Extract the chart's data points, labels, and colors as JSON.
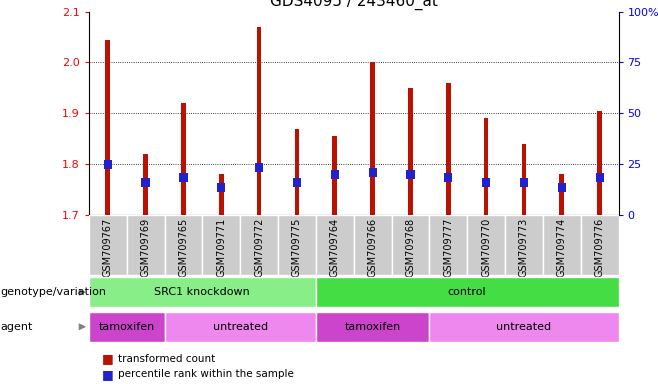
{
  "title": "GDS4095 / 243460_at",
  "samples": [
    "GSM709767",
    "GSM709769",
    "GSM709765",
    "GSM709771",
    "GSM709772",
    "GSM709775",
    "GSM709764",
    "GSM709766",
    "GSM709768",
    "GSM709777",
    "GSM709770",
    "GSM709773",
    "GSM709774",
    "GSM709776"
  ],
  "transformed_count": [
    2.045,
    1.82,
    1.92,
    1.78,
    2.07,
    1.87,
    1.855,
    2.0,
    1.95,
    1.96,
    1.89,
    1.84,
    1.78,
    1.905
  ],
  "percentile_bottom": [
    1.79,
    1.755,
    1.765,
    1.745,
    1.785,
    1.755,
    1.77,
    1.775,
    1.77,
    1.765,
    1.755,
    1.755,
    1.745,
    1.765
  ],
  "percentile_top": [
    1.808,
    1.773,
    1.783,
    1.763,
    1.803,
    1.773,
    1.788,
    1.793,
    1.788,
    1.783,
    1.773,
    1.773,
    1.763,
    1.783
  ],
  "y_min": 1.7,
  "y_max": 2.1,
  "y_ticks_left": [
    1.7,
    1.8,
    1.9,
    2.0,
    2.1
  ],
  "y_ticks_right": [
    0,
    25,
    50,
    75,
    100
  ],
  "bar_color": "#bb1100",
  "blue_color": "#2222cc",
  "bar_width": 0.12,
  "genotype_groups": [
    {
      "label": "SRC1 knockdown",
      "start": 0,
      "end": 6,
      "color": "#88ee88"
    },
    {
      "label": "control",
      "start": 6,
      "end": 14,
      "color": "#44dd44"
    }
  ],
  "agent_groups": [
    {
      "label": "tamoxifen",
      "start": 0,
      "end": 2,
      "color": "#cc44cc"
    },
    {
      "label": "untreated",
      "start": 2,
      "end": 6,
      "color": "#ee88ee"
    },
    {
      "label": "tamoxifen",
      "start": 6,
      "end": 9,
      "color": "#cc44cc"
    },
    {
      "label": "untreated",
      "start": 9,
      "end": 14,
      "color": "#ee88ee"
    }
  ],
  "legend_items": [
    {
      "label": "transformed count",
      "color": "#bb1100"
    },
    {
      "label": "percentile rank within the sample",
      "color": "#2222cc"
    }
  ],
  "tick_fontsize": 8,
  "title_fontsize": 11,
  "annot_fontsize": 8,
  "label_fontsize": 8
}
